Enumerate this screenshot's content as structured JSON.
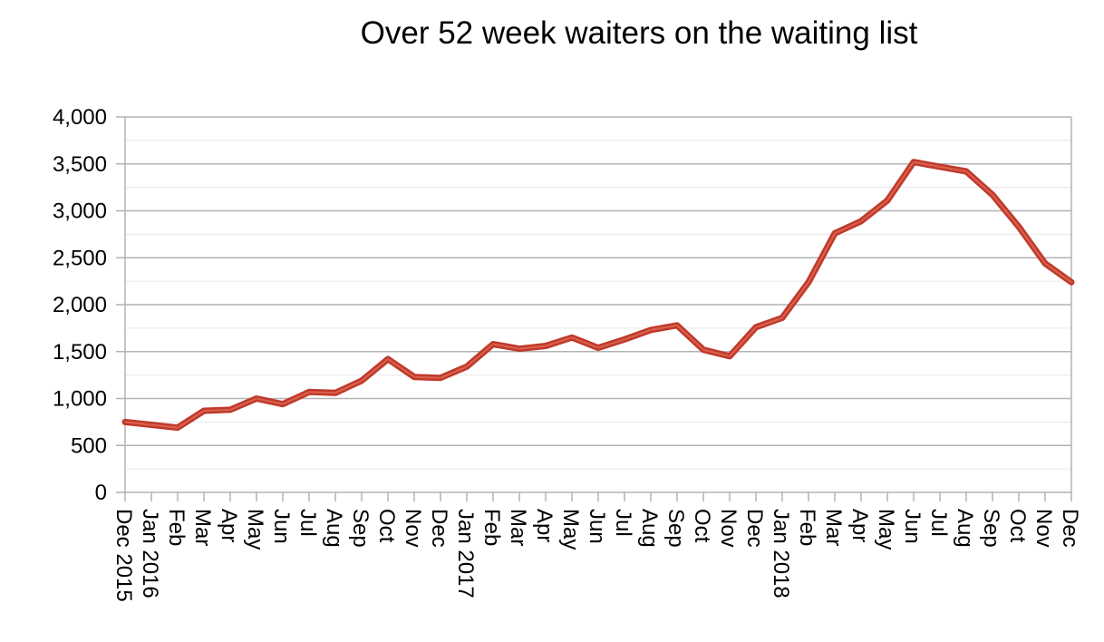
{
  "chart_data": {
    "type": "line",
    "title": "Over 52 week waiters on the waiting list",
    "xlabel": "",
    "ylabel": "",
    "ylim": [
      0,
      4000
    ],
    "yticks": [
      0,
      500,
      1000,
      1500,
      2000,
      2500,
      3000,
      3500,
      4000
    ],
    "ytick_labels": [
      "0",
      "500",
      "1,000",
      "1,500",
      "2,000",
      "2,500",
      "3,000",
      "3,500",
      "4,000"
    ],
    "grid": "horizontal major and minor",
    "legend": "none",
    "line_color": "#c0392b",
    "categories": [
      "Dec 2015",
      "Jan 2016",
      "Feb",
      "Mar",
      "Apr",
      "May",
      "Jun",
      "Jul",
      "Aug",
      "Sep",
      "Oct",
      "Nov",
      "Dec",
      "Jan 2017",
      "Feb",
      "Mar",
      "Apr",
      "May",
      "Jun",
      "Jul",
      "Aug",
      "Sep",
      "Oct",
      "Nov",
      "Dec",
      "Jan 2018",
      "Feb",
      "Mar",
      "Apr",
      "May",
      "Jun",
      "Jul",
      "Aug",
      "Sep",
      "Oct",
      "Nov",
      "Dec"
    ],
    "series": [
      {
        "values": [
          750,
          720,
          690,
          870,
          880,
          1000,
          940,
          1070,
          1060,
          1190,
          1420,
          1230,
          1220,
          1340,
          1580,
          1530,
          1560,
          1650,
          1540,
          1630,
          1730,
          1780,
          1520,
          1450,
          1760,
          1860,
          2240,
          2760,
          2890,
          3110,
          3520,
          3470,
          3420,
          3170,
          2830,
          2440,
          2240
        ]
      }
    ]
  }
}
